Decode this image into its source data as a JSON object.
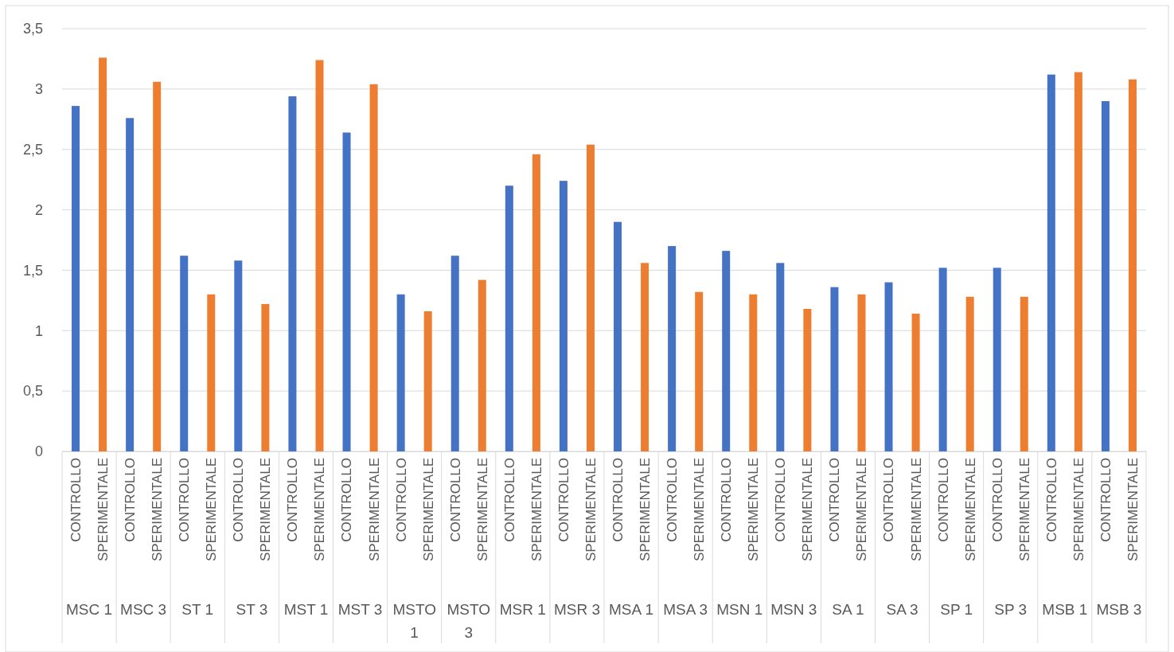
{
  "chart_data": {
    "type": "bar",
    "categories": [
      "CONTROLLO",
      "SPERIMENTALE",
      "CONTROLLO",
      "SPERIMENTALE",
      "CONTROLLO",
      "SPERIMENTALE",
      "CONTROLLO",
      "SPERIMENTALE",
      "CONTROLLO",
      "SPERIMENTALE",
      "CONTROLLO",
      "SPERIMENTALE",
      "CONTROLLO",
      "SPERIMENTALE",
      "CONTROLLO",
      "SPERIMENTALE",
      "CONTROLLO",
      "SPERIMENTALE",
      "CONTROLLO",
      "SPERIMENTALE",
      "CONTROLLO",
      "SPERIMENTALE",
      "CONTROLLO",
      "SPERIMENTALE",
      "CONTROLLO",
      "SPERIMENTALE",
      "CONTROLLO",
      "SPERIMENTALE",
      "CONTROLLO",
      "SPERIMENTALE",
      "CONTROLLO",
      "SPERIMENTALE",
      "CONTROLLO",
      "SPERIMENTALE",
      "CONTROLLO",
      "SPERIMENTALE",
      "CONTROLLO",
      "SPERIMENTALE",
      "CONTROLLO",
      "SPERIMENTALE"
    ],
    "values": [
      2.86,
      3.26,
      2.76,
      3.06,
      1.62,
      1.3,
      1.58,
      1.22,
      2.94,
      3.24,
      2.64,
      3.04,
      1.3,
      1.16,
      1.62,
      1.42,
      2.2,
      2.46,
      2.24,
      2.54,
      1.9,
      1.56,
      1.7,
      1.32,
      1.66,
      1.3,
      1.56,
      1.18,
      1.36,
      1.3,
      1.4,
      1.14,
      1.52,
      1.28,
      1.52,
      1.28,
      3.12,
      3.14,
      2.9,
      3.08
    ],
    "colors": [
      "#4472c4",
      "#ed7d31",
      "#4472c4",
      "#ed7d31",
      "#4472c4",
      "#ed7d31",
      "#4472c4",
      "#ed7d31",
      "#4472c4",
      "#ed7d31",
      "#4472c4",
      "#ed7d31",
      "#4472c4",
      "#ed7d31",
      "#4472c4",
      "#ed7d31",
      "#4472c4",
      "#ed7d31",
      "#4472c4",
      "#ed7d31",
      "#4472c4",
      "#ed7d31",
      "#4472c4",
      "#ed7d31",
      "#4472c4",
      "#ed7d31",
      "#4472c4",
      "#ed7d31",
      "#4472c4",
      "#ed7d31",
      "#4472c4",
      "#ed7d31",
      "#4472c4",
      "#ed7d31",
      "#4472c4",
      "#ed7d31",
      "#4472c4",
      "#ed7d31",
      "#4472c4",
      "#ed7d31"
    ],
    "annotations": [
      "MSC 1",
      "MSC 3",
      "ST 1",
      "ST 3",
      "MST 1",
      "MST 3",
      "MSTO 1",
      "MSTO 3",
      "MSR 1",
      "MSR 3",
      "MSA 1",
      "MSA 3",
      "MSN 1",
      "MSN 3",
      "SA 1",
      "SA 3",
      "SP 1",
      "SP 3",
      "MSB 1",
      "MSB 3"
    ],
    "ylim": [
      0,
      3.5
    ],
    "yticks": [
      {
        "value": 0,
        "label": "0"
      },
      {
        "value": 0.5,
        "label": "0,5"
      },
      {
        "value": 1,
        "label": "1"
      },
      {
        "value": 1.5,
        "label": "1,5"
      },
      {
        "value": 2,
        "label": "2"
      },
      {
        "value": 2.5,
        "label": "2,5"
      },
      {
        "value": 3,
        "label": "3"
      },
      {
        "value": 3.5,
        "label": "3,5"
      }
    ],
    "grid": "y"
  }
}
